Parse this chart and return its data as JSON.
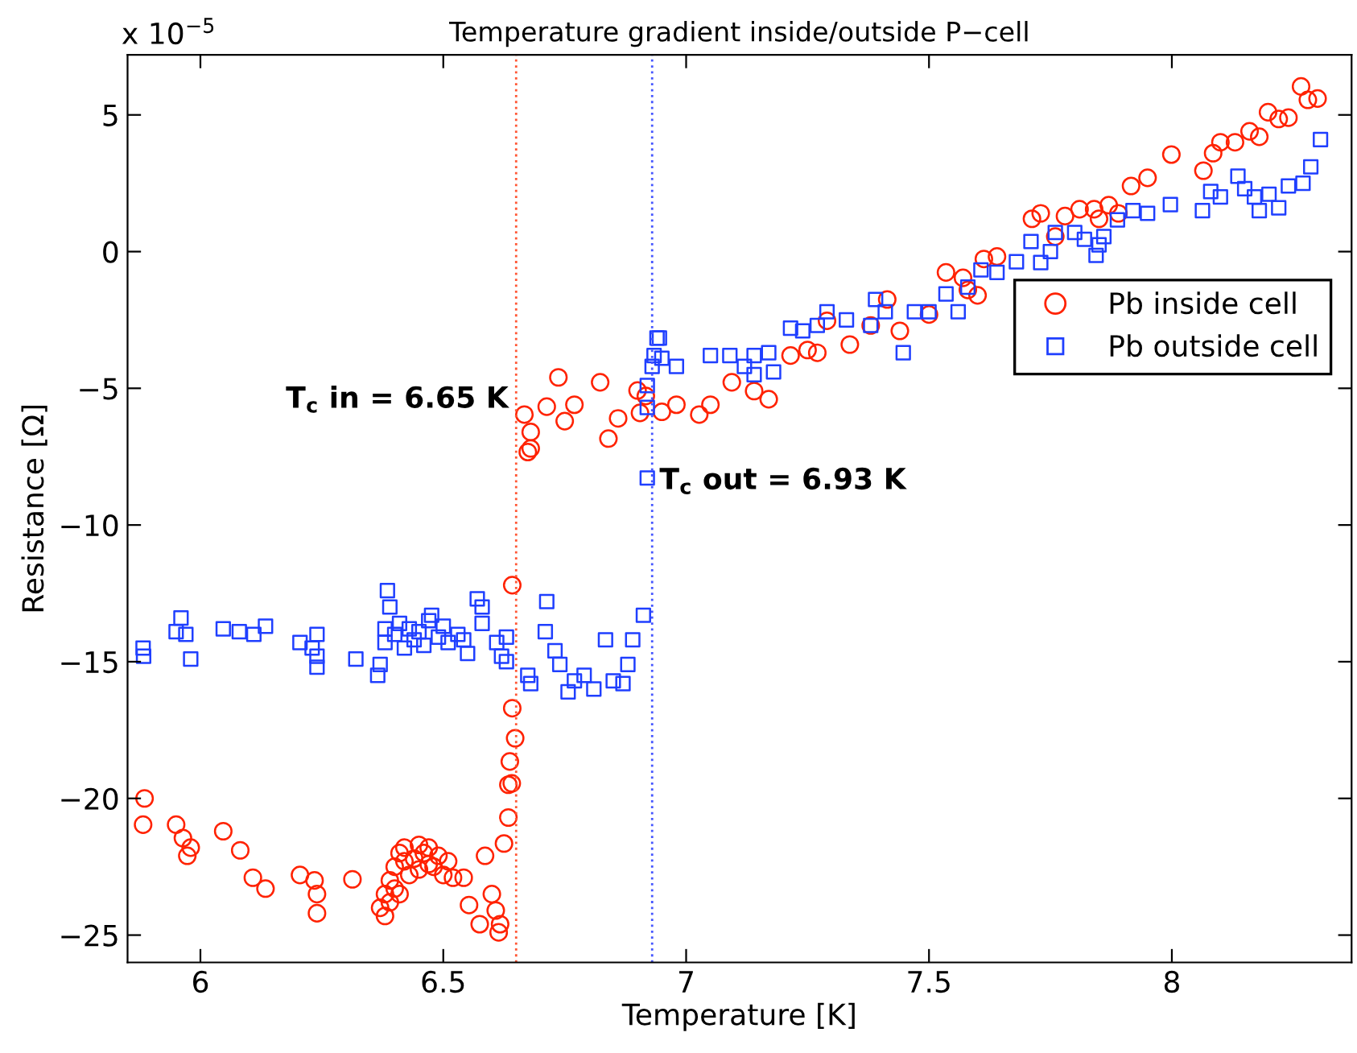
{
  "chart_data": {
    "type": "scatter",
    "title": "Temperature gradient inside/outside P−cell",
    "xlabel": "Temperature [K]",
    "ylabel": "Resistance [Ω]",
    "annotations": [
      "x 10$^{−5}$"
    ],
    "xlim": [
      5.85,
      8.37
    ],
    "xticks": [
      6,
      6.5,
      7,
      7.5,
      8
    ],
    "ylim": [
      -26,
      7.2
    ],
    "yticks": [
      -25,
      -20,
      -15,
      -10,
      -5,
      0,
      5
    ],
    "grid": false,
    "legend": "right",
    "ref_lines": [
      {
        "axis": "x",
        "value": 6.65,
        "label": "T$_{c}$ in = 6.65 K",
        "color": "#ff5533",
        "line_style": "dotted"
      },
      {
        "axis": "x",
        "value": 6.93,
        "label": "T$_{c}$ out = 6.93 K",
        "color": "#4455ff",
        "line_style": "dotted"
      }
    ],
    "series": [
      {
        "name": "Pb inside cell",
        "color": "#ff2200",
        "marker": "circle",
        "x": [
          5.885,
          5.882,
          5.95,
          5.964,
          5.98,
          5.973,
          6.047,
          6.082,
          6.108,
          6.134,
          6.205,
          6.235,
          6.24,
          6.24,
          6.313,
          6.37,
          6.38,
          6.38,
          6.39,
          6.39,
          6.4,
          6.4,
          6.41,
          6.41,
          6.42,
          6.42,
          6.43,
          6.44,
          6.45,
          6.45,
          6.46,
          6.47,
          6.47,
          6.48,
          6.49,
          6.5,
          6.51,
          6.52,
          6.542,
          6.553,
          6.575,
          6.586,
          6.6,
          6.608,
          6.614,
          6.617,
          6.625,
          6.634,
          6.634,
          6.641,
          6.637,
          6.648,
          6.642,
          6.642,
          6.674,
          6.68,
          6.667,
          6.68,
          6.713,
          6.737,
          6.75,
          6.77,
          6.823,
          6.84,
          6.86,
          6.9,
          6.905,
          6.917,
          6.95,
          6.98,
          7.027,
          7.05,
          7.094,
          7.14,
          7.17,
          7.215,
          7.25,
          7.27,
          7.29,
          7.337,
          7.38,
          7.414,
          7.44,
          7.5,
          7.535,
          7.57,
          7.58,
          7.6,
          7.613,
          7.64,
          7.712,
          7.73,
          7.76,
          7.78,
          7.81,
          7.84,
          7.85,
          7.87,
          7.89,
          7.916,
          7.95,
          7.999,
          8.065,
          8.085,
          8.1,
          8.13,
          8.16,
          8.18,
          8.198,
          8.22,
          8.24,
          8.266,
          8.28,
          8.3
        ],
        "values": [
          -20.0,
          -20.96,
          -20.96,
          -21.45,
          -21.8,
          -22.1,
          -21.2,
          -21.9,
          -22.9,
          -23.3,
          -22.8,
          -23.0,
          -23.5,
          -24.2,
          -22.96,
          -24.0,
          -23.5,
          -24.3,
          -23.0,
          -23.8,
          -22.5,
          -23.3,
          -22.0,
          -23.5,
          -22.3,
          -21.8,
          -22.8,
          -22.2,
          -21.7,
          -22.6,
          -22.0,
          -22.4,
          -21.8,
          -22.5,
          -22.1,
          -22.8,
          -22.3,
          -22.9,
          -22.9,
          -23.9,
          -24.6,
          -22.1,
          -23.5,
          -24.1,
          -24.9,
          -24.6,
          -21.65,
          -20.7,
          -19.5,
          -19.45,
          -18.65,
          -17.8,
          -16.7,
          -12.2,
          -7.33,
          -7.2,
          -5.96,
          -6.6,
          -5.67,
          -4.6,
          -6.2,
          -5.6,
          -4.78,
          -6.84,
          -6.1,
          -5.08,
          -5.9,
          -5.28,
          -5.86,
          -5.6,
          -5.96,
          -5.6,
          -4.78,
          -5.1,
          -5.4,
          -3.8,
          -3.6,
          -3.7,
          -2.53,
          -3.4,
          -2.7,
          -1.75,
          -2.9,
          -2.3,
          -0.76,
          -0.96,
          -1.4,
          -1.6,
          -0.27,
          -0.18,
          1.2,
          1.4,
          0.55,
          1.3,
          1.55,
          1.55,
          1.2,
          1.7,
          1.4,
          2.4,
          2.7,
          3.55,
          2.96,
          3.6,
          4.0,
          4.0,
          4.4,
          4.2,
          5.1,
          4.85,
          4.9,
          6.04,
          5.55,
          5.6
        ]
      },
      {
        "name": "Pb outside cell",
        "color": "#1f3fff",
        "marker": "square",
        "x": [
          5.882,
          5.883,
          5.95,
          5.96,
          5.97,
          5.98,
          6.047,
          6.08,
          6.11,
          6.134,
          6.205,
          6.24,
          6.23,
          6.24,
          6.24,
          6.32,
          6.365,
          6.37,
          6.385,
          6.39,
          6.38,
          6.38,
          6.4,
          6.41,
          6.42,
          6.43,
          6.44,
          6.45,
          6.46,
          6.47,
          6.476,
          6.49,
          6.5,
          6.51,
          6.53,
          6.542,
          6.55,
          6.57,
          6.58,
          6.58,
          6.61,
          6.62,
          6.63,
          6.63,
          6.674,
          6.68,
          6.713,
          6.71,
          6.73,
          6.74,
          6.757,
          6.77,
          6.79,
          6.834,
          6.81,
          6.85,
          6.87,
          6.88,
          6.89,
          6.912,
          6.92,
          6.94,
          6.934,
          6.93,
          6.92,
          6.92,
          6.945,
          6.95,
          6.98,
          7.05,
          7.09,
          7.12,
          7.14,
          7.17,
          7.14,
          7.18,
          7.215,
          7.24,
          7.27,
          7.29,
          7.33,
          7.39,
          7.41,
          7.38,
          7.447,
          7.47,
          7.5,
          7.535,
          7.56,
          7.58,
          7.607,
          7.64,
          7.68,
          7.73,
          7.71,
          7.75,
          7.76,
          7.8,
          7.82,
          7.844,
          7.85,
          7.86,
          7.888,
          7.92,
          7.95,
          7.997,
          8.063,
          8.08,
          8.1,
          8.136,
          8.15,
          8.17,
          8.18,
          8.2,
          8.22,
          8.24,
          8.27,
          8.286,
          8.306
        ],
        "values": [
          -14.5,
          -14.8,
          -13.9,
          -13.4,
          -14.0,
          -14.9,
          -13.8,
          -13.9,
          -14.0,
          -13.7,
          -14.3,
          -14.0,
          -14.5,
          -14.8,
          -15.2,
          -14.9,
          -15.5,
          -15.1,
          -12.4,
          -13.0,
          -13.8,
          -14.3,
          -14.0,
          -13.6,
          -14.5,
          -13.8,
          -14.2,
          -13.9,
          -14.4,
          -13.5,
          -13.3,
          -14.1,
          -13.7,
          -14.3,
          -14.0,
          -14.2,
          -14.7,
          -12.7,
          -13.0,
          -13.6,
          -14.3,
          -14.8,
          -14.1,
          -15.0,
          -15.5,
          -15.8,
          -12.8,
          -13.9,
          -14.6,
          -15.1,
          -16.1,
          -15.7,
          -15.5,
          -14.2,
          -16.0,
          -15.7,
          -15.8,
          -15.1,
          -14.2,
          -13.3,
          -8.28,
          -3.16,
          -3.8,
          -4.2,
          -4.9,
          -5.7,
          -3.16,
          -3.9,
          -4.2,
          -3.8,
          -3.8,
          -4.2,
          -3.8,
          -3.7,
          -4.5,
          -4.4,
          -2.8,
          -2.9,
          -2.7,
          -2.2,
          -2.5,
          -1.75,
          -2.2,
          -2.7,
          -3.7,
          -2.2,
          -2.2,
          -1.55,
          -2.2,
          -1.3,
          -0.67,
          -0.76,
          -0.37,
          -0.4,
          0.37,
          0.0,
          0.7,
          0.7,
          0.45,
          -0.14,
          0.25,
          0.55,
          1.16,
          1.5,
          1.4,
          1.72,
          1.5,
          2.2,
          2.0,
          2.76,
          2.3,
          2.0,
          1.5,
          2.1,
          1.6,
          2.4,
          2.5,
          3.1,
          4.1
        ]
      }
    ]
  }
}
